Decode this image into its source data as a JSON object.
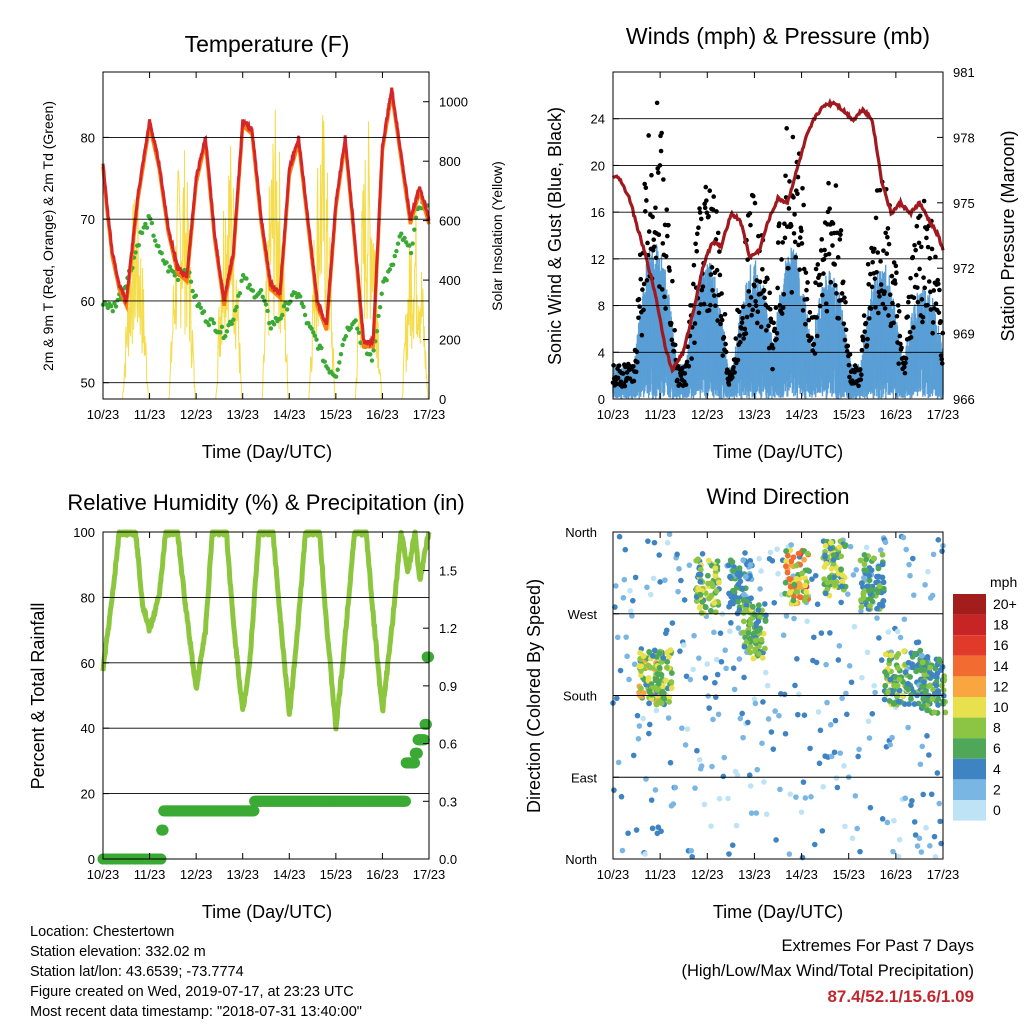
{
  "panels": {
    "temperature": {
      "title": "Temperature (F)",
      "ylabel_left": "2m & 9m T (Red, Orange) & 2m Td (Green)",
      "ylabel_right": "Solar Insolation (Yellow)",
      "xlabel": "Time (Day/UTC)",
      "left_ticks": [
        "50",
        "60",
        "70",
        "80"
      ],
      "right_ticks": [
        "0",
        "200",
        "400",
        "600",
        "800",
        "1000"
      ],
      "x_ticks": [
        "10/23",
        "11/23",
        "12/23",
        "13/23",
        "14/23",
        "15/23",
        "16/23",
        "17/23"
      ]
    },
    "winds": {
      "title": "Winds (mph) & Pressure (mb)",
      "ylabel_left": "Sonic Wind & Gust (Blue, Black)",
      "ylabel_right": "Station Pressure (Maroon)",
      "xlabel": "Time (Day/UTC)",
      "left_ticks": [
        "0",
        "4",
        "8",
        "12",
        "16",
        "20",
        "24"
      ],
      "right_ticks": [
        "966",
        "969",
        "972",
        "975",
        "978",
        "981"
      ],
      "x_ticks": [
        "10/23",
        "11/23",
        "12/23",
        "13/23",
        "14/23",
        "15/23",
        "16/23",
        "17/23"
      ]
    },
    "humidity": {
      "title": "Relative Humidity (%) & Precipitation (in)",
      "ylabel_left": "Percent & Total Rainfall",
      "xlabel": "Time (Day/UTC)",
      "left_ticks": [
        "0",
        "20",
        "40",
        "60",
        "80",
        "100"
      ],
      "right_ticks": [
        "0.0",
        "0.3",
        "0.6",
        "0.9",
        "1.2",
        "1.5"
      ],
      "x_ticks": [
        "10/23",
        "11/23",
        "12/23",
        "13/23",
        "14/23",
        "15/23",
        "16/23",
        "17/23"
      ]
    },
    "direction": {
      "title": "Wind Direction",
      "ylabel_left": "Direction (Colored By Speed)",
      "xlabel": "Time (Day/UTC)",
      "left_ticks": [
        "North",
        "East",
        "South",
        "West",
        "North"
      ],
      "x_ticks": [
        "10/23",
        "11/23",
        "12/23",
        "13/23",
        "14/23",
        "15/23",
        "16/23",
        "17/23"
      ],
      "legend_title": "mph",
      "legend_labels": [
        "20+",
        "18",
        "16",
        "14",
        "12",
        "10",
        "8",
        "6",
        "4",
        "2",
        "0"
      ],
      "legend_colors": [
        "#a31d1d",
        "#c72525",
        "#e23a2a",
        "#f26b30",
        "#f9a640",
        "#e9e04d",
        "#8cc544",
        "#4ea858",
        "#3f84c2",
        "#7ab6e3",
        "#bfe3f6"
      ]
    }
  },
  "colors": {
    "temp2m": "#d62728",
    "temp9m": "#ff7f0e",
    "dewpoint": "#3aaa35",
    "solar": "#f5dc4a",
    "wind": "#5a9fd6",
    "gust": "#000000",
    "pressure": "#a0191e",
    "rh": "#8cc63f",
    "precip": "#3aaa35",
    "extremes": "#c0282d"
  },
  "info": {
    "location": "Location: Chestertown",
    "elevation": "Station elevation: 332.02 m",
    "latlon": "Station lat/lon: 43.6539; -73.7774",
    "created": "Figure created on Wed, 2019-07-17, at 23:23 UTC",
    "recent": "Most recent data timestamp: \"2018-07-31 13:40:00\""
  },
  "extremes": {
    "title": "Extremes For Past 7 Days",
    "subtitle": "(High/Low/Max Wind/Total Precipitation)",
    "values": "87.4/52.1/15.6/1.09"
  },
  "chart_data": [
    {
      "type": "line",
      "x_unit": "days since 10/23",
      "xlim": [
        0,
        7
      ],
      "ylim": [
        48,
        88
      ],
      "y2lim": [
        0,
        1100
      ],
      "series": [
        {
          "name": "2m T",
          "x": [
            0,
            0.08,
            0.2,
            0.35,
            0.5,
            0.75,
            1.0,
            1.2,
            1.4,
            1.6,
            1.8,
            2.0,
            2.2,
            2.4,
            2.6,
            2.8,
            3.0,
            3.2,
            3.4,
            3.6,
            3.8,
            4.0,
            4.2,
            4.4,
            4.6,
            4.8,
            5.0,
            5.2,
            5.4,
            5.6,
            5.8,
            6.0,
            6.2,
            6.4,
            6.6,
            6.8,
            7.0
          ],
          "y": [
            77,
            72,
            66,
            62,
            60,
            73,
            82,
            77,
            69,
            64,
            63,
            75,
            80,
            68,
            60,
            66,
            82,
            81,
            70,
            62,
            61,
            76,
            80,
            70,
            60,
            57,
            72,
            80,
            68,
            55,
            55,
            79,
            86,
            78,
            70,
            74,
            70
          ]
        },
        {
          "name": "2m Td",
          "x": [
            0,
            0.2,
            0.4,
            0.6,
            0.8,
            1.0,
            1.2,
            1.4,
            1.6,
            1.8,
            2.0,
            2.2,
            2.4,
            2.6,
            2.8,
            3.0,
            3.2,
            3.4,
            3.6,
            3.8,
            4.0,
            4.2,
            4.4,
            4.6,
            4.8,
            5.0,
            5.2,
            5.4,
            5.6,
            5.8,
            6.0,
            6.2,
            6.4,
            6.6,
            6.8,
            7.0
          ],
          "y": [
            60,
            59,
            61,
            64,
            68,
            70,
            66,
            64,
            63,
            64,
            60,
            58,
            57,
            56,
            58,
            63,
            61,
            61,
            57,
            58,
            60,
            61,
            57,
            55,
            52,
            51,
            56,
            58,
            54,
            53,
            62,
            64,
            68,
            66,
            72,
            71
          ]
        },
        {
          "name": "Solar",
          "axis": "right",
          "peaks_x": [
            0.7,
            1.7,
            2.7,
            3.7,
            4.7,
            5.7,
            6.7
          ],
          "peaks_y": [
            700,
            900,
            920,
            980,
            1000,
            950,
            700
          ]
        }
      ]
    },
    {
      "type": "scatter",
      "x_unit": "days since 10/23",
      "xlim": [
        0,
        7
      ],
      "ylim": [
        0,
        28
      ],
      "y2lim": [
        966,
        981
      ],
      "series": [
        {
          "name": "Sonic Wind",
          "burst_x": [
            0.9,
            2.0,
            3.0,
            3.8,
            4.6,
            5.7,
            6.6
          ],
          "burst_peak": [
            14,
            12,
            12,
            13,
            11,
            12,
            10
          ]
        },
        {
          "name": "Gust",
          "burst_x": [
            0.9,
            2.0,
            3.0,
            3.8,
            4.6,
            5.7,
            6.6
          ],
          "burst_peak": [
            26,
            20,
            18,
            25,
            20,
            20,
            18
          ]
        },
        {
          "name": "Pressure",
          "axis": "right",
          "x": [
            0,
            0.15,
            0.35,
            0.5,
            0.7,
            0.9,
            1.1,
            1.25,
            1.5,
            1.7,
            1.9,
            2.1,
            2.3,
            2.5,
            2.7,
            2.9,
            3.1,
            3.3,
            3.5,
            3.7,
            3.9,
            4.1,
            4.3,
            4.5,
            4.7,
            4.9,
            5.1,
            5.3,
            5.5,
            5.7,
            5.9,
            6.1,
            6.3,
            6.5,
            6.7,
            6.9,
            7.0
          ],
          "y": [
            976.2,
            976.1,
            975.2,
            974.0,
            972.5,
            970.8,
            968.5,
            967.3,
            968.2,
            970.0,
            972.0,
            973.2,
            973.0,
            974.5,
            974.2,
            972.5,
            972.8,
            974.2,
            975.2,
            975.0,
            976.5,
            978.0,
            979.0,
            979.5,
            979.6,
            979.2,
            978.8,
            979.3,
            978.8,
            976.0,
            974.5,
            975.0,
            974.5,
            975.0,
            974.2,
            973.5,
            972.8
          ]
        }
      ]
    },
    {
      "type": "line",
      "x_unit": "days since 10/23",
      "xlim": [
        0,
        7
      ],
      "ylim": [
        0,
        100
      ],
      "y2lim": [
        0,
        1.7
      ],
      "series": [
        {
          "name": "RH",
          "x": [
            0,
            0.2,
            0.35,
            0.45,
            0.7,
            0.85,
            1.0,
            1.2,
            1.35,
            1.6,
            1.75,
            2.0,
            2.2,
            2.35,
            2.65,
            2.8,
            3.0,
            3.15,
            3.35,
            3.65,
            3.8,
            4.0,
            4.15,
            4.35,
            4.65,
            4.8,
            5.0,
            5.15,
            5.4,
            5.65,
            5.8,
            6.0,
            6.2,
            6.4,
            6.55,
            6.7,
            6.8,
            7.0
          ],
          "y": [
            58,
            80,
            100,
            100,
            100,
            78,
            70,
            80,
            100,
            100,
            80,
            52,
            70,
            100,
            100,
            72,
            45,
            60,
            100,
            100,
            75,
            44,
            65,
            100,
            100,
            72,
            40,
            60,
            100,
            100,
            75,
            45,
            70,
            100,
            88,
            100,
            85,
            100
          ]
        },
        {
          "name": "Precip",
          "axis": "right",
          "x": [
            0,
            1.2,
            1.25,
            1.3,
            3.2,
            3.25,
            6.45,
            6.5,
            6.7,
            6.75,
            6.9,
            6.95,
            7.0
          ],
          "y": [
            0,
            0,
            0.15,
            0.25,
            0.25,
            0.3,
            0.3,
            0.5,
            0.55,
            0.62,
            0.7,
            1.05,
            1.09
          ]
        }
      ]
    },
    {
      "type": "scatter",
      "x_unit": "days since 10/23",
      "xlim": [
        0,
        7
      ],
      "ylim": [
        0,
        360
      ],
      "ytick_values": [
        0,
        90,
        180,
        270,
        360
      ],
      "series": [
        {
          "name": "Direction",
          "cluster_x": [
            0.8,
            1.0,
            2.0,
            2.7,
            3.0,
            3.9,
            4.7,
            5.5,
            6.0,
            6.5,
            6.8
          ],
          "cluster_dir": [
            200,
            200,
            300,
            300,
            250,
            310,
            320,
            305,
            200,
            200,
            190
          ],
          "cluster_speed": [
            12,
            10,
            10,
            6,
            9,
            14,
            10,
            8,
            9,
            7,
            8
          ]
        }
      ]
    }
  ]
}
